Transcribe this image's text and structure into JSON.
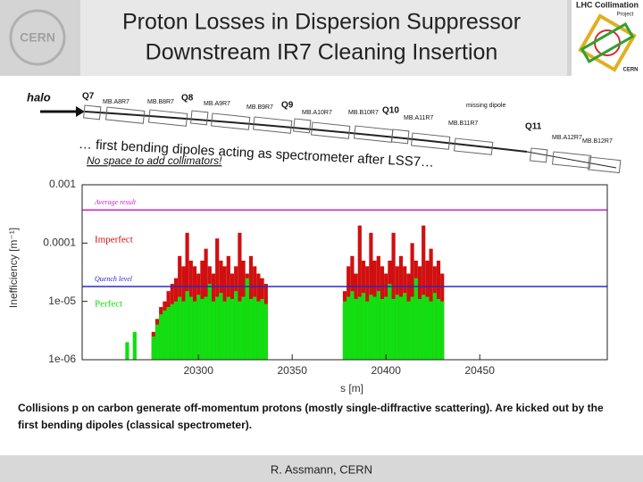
{
  "header": {
    "title_line1": "Proton Losses in Dispersion Suppressor",
    "title_line2": "Downstream IR7 Cleaning Insertion",
    "logo_left": "CERN",
    "logo_right_line1": "LHC Collimation",
    "logo_right_line2": "Project",
    "logo_right_line3": "CERN"
  },
  "diagram": {
    "halo": "halo",
    "labels": [
      "Q7",
      "MB.A8R7",
      "MB.B8R7",
      "Q8",
      "MB.A9R7",
      "MB.B9R7",
      "Q9",
      "MB.A10R7",
      "MB.B10R7",
      "Q10",
      "MB.A11R7",
      "MB.B11R7",
      "missing dipole",
      "Q11",
      "MB.A12R7",
      "MB.B12R7"
    ],
    "statement": "… first bending dipoles acting as spectrometer after LSS7…",
    "note": "No space to add collimators!"
  },
  "chart_data": {
    "type": "bar",
    "ylabel": "Inefficiency [m⁻¹]",
    "xlabel": "s [m]",
    "log_y": true,
    "xlim": [
      20238,
      20518
    ],
    "xticks": [
      20300,
      20350,
      20400,
      20450
    ],
    "ylim": [
      1e-06,
      0.001
    ],
    "yticks": [
      0.001,
      0.0001,
      {
        "value": 1e-05,
        "label": "1e-05"
      },
      {
        "value": 1e-06,
        "label": "1e-06"
      }
    ],
    "x": [
      20262,
      20266,
      20276,
      20278,
      20280,
      20282,
      20284,
      20286,
      20288,
      20290,
      20292,
      20294,
      20296,
      20298,
      20300,
      20302,
      20304,
      20306,
      20308,
      20310,
      20312,
      20314,
      20316,
      20318,
      20320,
      20322,
      20324,
      20326,
      20328,
      20330,
      20332,
      20334,
      20336,
      20378,
      20380,
      20382,
      20384,
      20386,
      20388,
      20390,
      20392,
      20394,
      20396,
      20398,
      20400,
      20402,
      20404,
      20406,
      20408,
      20410,
      20412,
      20414,
      20416,
      20418,
      20420,
      20422,
      20424,
      20426,
      20428,
      20430
    ],
    "series": [
      {
        "name": "Imperfect",
        "color": "#d01010",
        "values": [
          null,
          null,
          3e-06,
          5e-06,
          8e-06,
          1e-05,
          1.5e-05,
          2e-05,
          2.5e-05,
          6e-05,
          4e-05,
          0.00015,
          5e-05,
          4e-05,
          3e-05,
          5e-05,
          8e-05,
          4e-05,
          3e-05,
          0.00012,
          5e-05,
          4e-05,
          6e-05,
          3e-05,
          4e-05,
          0.00015,
          5e-05,
          3e-05,
          6e-05,
          4e-05,
          3e-05,
          2.5e-05,
          2e-05,
          1.5e-05,
          4e-05,
          6e-05,
          3e-05,
          0.0002,
          5e-05,
          4e-05,
          0.00015,
          5e-05,
          6e-05,
          4e-05,
          3e-05,
          5e-05,
          0.00015,
          4e-05,
          6e-05,
          4e-05,
          3e-05,
          0.0001,
          5e-05,
          4e-05,
          0.0002,
          5e-05,
          8e-05,
          4e-05,
          5e-05,
          3e-05
        ]
      },
      {
        "name": "Perfect",
        "color": "#10e010",
        "values": [
          2e-06,
          3e-06,
          2.5e-06,
          4e-06,
          6e-06,
          7e-06,
          8e-06,
          9e-06,
          1e-05,
          1.2e-05,
          1e-05,
          1.5e-05,
          1.2e-05,
          1e-05,
          1.3e-05,
          1.1e-05,
          1.2e-05,
          2e-05,
          1e-05,
          1.2e-05,
          1.4e-05,
          1e-05,
          1.2e-05,
          1.1e-05,
          1.5e-05,
          1e-05,
          1.2e-05,
          2.5e-05,
          1.1e-05,
          1.2e-05,
          1e-05,
          1.1e-05,
          9e-06,
          1e-05,
          1.2e-05,
          1.5e-05,
          1.1e-05,
          1.2e-05,
          1.4e-05,
          1e-05,
          1.3e-05,
          1.2e-05,
          1.5e-05,
          1.1e-05,
          1.2e-05,
          2e-05,
          1.1e-05,
          1.3e-05,
          1.2e-05,
          1.4e-05,
          1e-05,
          1.2e-05,
          2.5e-05,
          1.1e-05,
          1.3e-05,
          1.2e-05,
          1e-05,
          1.4e-05,
          1.1e-05,
          1e-05
        ]
      }
    ],
    "reference_lines": [
      {
        "name": "Average result",
        "value": 0.00037,
        "color": "#d020d0"
      },
      {
        "name": "Quench level",
        "value": 1.8e-05,
        "color": "#2828c8"
      }
    ]
  },
  "caption": "Collisions p on carbon generate off-momentum protons (mostly single-diffractive scattering). Are kicked out by the first bending dipoles (classical spectrometer).",
  "footer": "R. Assmann, CERN"
}
